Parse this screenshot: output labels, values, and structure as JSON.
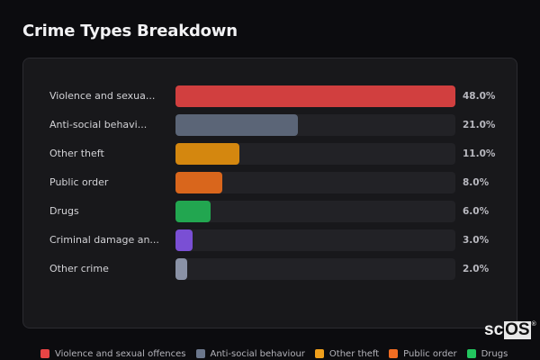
{
  "header": {
    "title": "Crime Types Breakdown"
  },
  "chart_data": {
    "type": "bar",
    "orientation": "horizontal",
    "title": "Crime Types Breakdown",
    "categories": [
      "Violence and sexual offences",
      "Anti-social behaviour",
      "Other theft",
      "Public order",
      "Drugs",
      "Criminal damage and arson",
      "Other crime"
    ],
    "display_labels": [
      "Violence and sexua...",
      "Anti-social behavi...",
      "Other theft",
      "Public order",
      "Drugs",
      "Criminal damage an...",
      "Other crime"
    ],
    "values": [
      48.0,
      21.0,
      11.0,
      8.0,
      6.0,
      3.0,
      2.0
    ],
    "value_labels": [
      "48.0%",
      "21.0%",
      "11.0%",
      "8.0%",
      "6.0%",
      "3.0%",
      "2.0%"
    ],
    "colors": [
      "#d13f3f",
      "#5b6577",
      "#d4870f",
      "#d9661c",
      "#22a650",
      "#7a4fd4",
      "#8a92a6"
    ],
    "unit": "%",
    "xlim": [
      0,
      48
    ],
    "grid": false,
    "legend_position": "bottom"
  },
  "legend": {
    "items": [
      {
        "label": "Violence and sexual offences",
        "color": "#e84545"
      },
      {
        "label": "Anti-social behaviour",
        "color": "#6b778c"
      },
      {
        "label": "Other theft",
        "color": "#f0a01c"
      },
      {
        "label": "Public order",
        "color": "#f26d22"
      },
      {
        "label": "Drugs",
        "color": "#22c55e"
      }
    ]
  },
  "logo": {
    "sc": "sc",
    "os": "OS",
    "reg": "®"
  }
}
